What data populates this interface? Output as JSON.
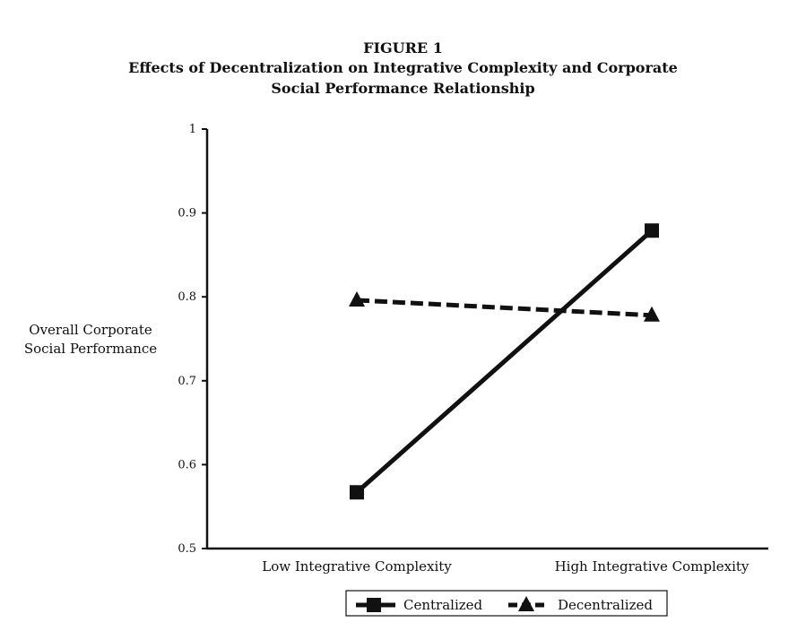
{
  "figure": {
    "number": "FIGURE 1",
    "title_line1": "Effects of Decentralization on Integrative Complexity and Corporate",
    "title_line2": "Social Performance Relationship"
  },
  "chart_data": {
    "type": "line",
    "title": "Effects of Decentralization on Integrative Complexity and Corporate Social Performance Relationship",
    "categories": [
      "Low Integrative Complexity",
      "High Integrative Complexity"
    ],
    "ylabel_lines": [
      "Overall Corporate",
      "Social Performance"
    ],
    "xlabel": "",
    "ylim": [
      0.5,
      1
    ],
    "yticks": [
      "0.5",
      "0.6",
      "0.7",
      "0.8",
      "0.9",
      "1"
    ],
    "grid": false,
    "legend_position": "bottom",
    "series": [
      {
        "name": "Centralized",
        "values": [
          0.567,
          0.879
        ],
        "line_style": "solid",
        "marker": "square",
        "color": "#111111"
      },
      {
        "name": "Decentralized",
        "values": [
          0.796,
          0.778
        ],
        "line_style": "dashed",
        "marker": "triangle",
        "color": "#111111"
      }
    ]
  }
}
